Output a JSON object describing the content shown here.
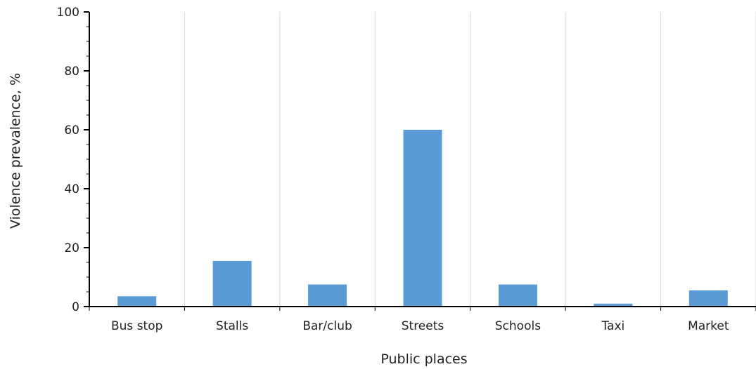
{
  "chart_data": {
    "type": "bar",
    "title": "",
    "xlabel": "Public places",
    "ylabel": "Violence prevalence, %",
    "categories": [
      "Bus stop",
      "Stalls",
      "Bar/club",
      "Streets",
      "Schools",
      "Taxi",
      "Market"
    ],
    "values": [
      3.5,
      15.5,
      7.5,
      60,
      7.5,
      1,
      5.5
    ],
    "ylim": [
      0,
      100
    ],
    "yticks": [
      0,
      20,
      40,
      60,
      80,
      100
    ],
    "grid": "vertical",
    "legend": "none",
    "colors": {
      "bar": "#5b9bd5",
      "axis": "#000000",
      "grid": "#d9d9d9"
    }
  }
}
